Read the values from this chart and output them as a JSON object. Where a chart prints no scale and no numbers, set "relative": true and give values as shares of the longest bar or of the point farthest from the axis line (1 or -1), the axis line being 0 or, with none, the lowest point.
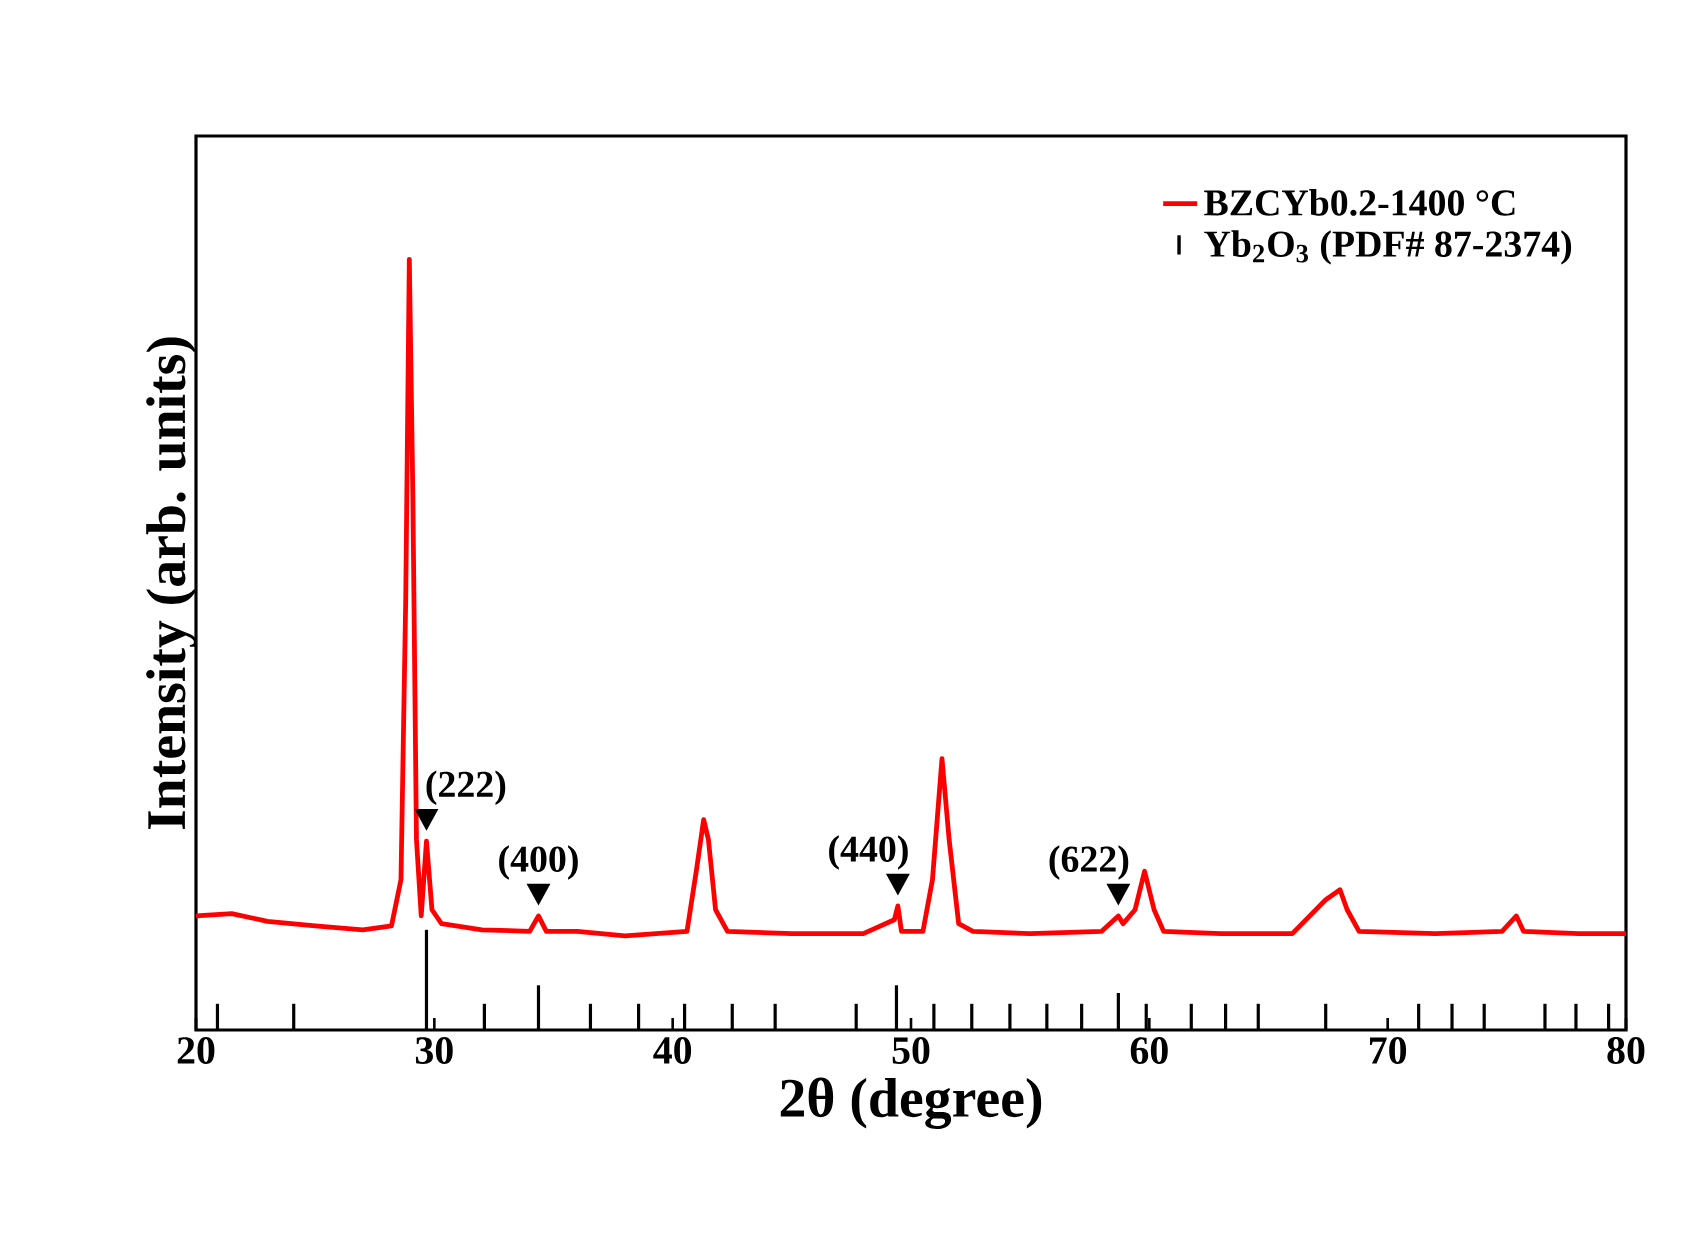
{
  "chart_data": {
    "type": "line",
    "xlabel": "2θ (degree)",
    "ylabel": "Intensity (arb. units)",
    "relative": true,
    "xlim": [
      20,
      80
    ],
    "xticks": [
      20,
      30,
      40,
      50,
      60,
      70,
      80
    ],
    "legend": "top right",
    "grid": false,
    "series": [
      {
        "name": "BZCYb0.2-1400 °C",
        "color": "#ff0000",
        "x": [
          20,
          21.5,
          23,
          25,
          27,
          28.2,
          28.6,
          28.8,
          28.95,
          29.1,
          29.25,
          29.45,
          29.67,
          29.9,
          30.3,
          32,
          34,
          34.37,
          34.7,
          36,
          38,
          40.6,
          41.0,
          41.3,
          41.5,
          41.8,
          42.3,
          45,
          48,
          49.3,
          49.45,
          49.6,
          50.5,
          50.9,
          51.3,
          51.6,
          52,
          52.6,
          55,
          58,
          58.7,
          58.9,
          59.4,
          59.8,
          60.2,
          60.6,
          63,
          66,
          67.4,
          68.0,
          68.3,
          68.8,
          72,
          74.8,
          75.4,
          75.7,
          78,
          80
        ],
        "values": [
          0.148,
          0.151,
          0.141,
          0.135,
          0.13,
          0.135,
          0.195,
          0.56,
          1.0,
          0.69,
          0.247,
          0.148,
          0.245,
          0.156,
          0.138,
          0.13,
          0.128,
          0.148,
          0.128,
          0.128,
          0.122,
          0.128,
          0.208,
          0.273,
          0.247,
          0.156,
          0.128,
          0.125,
          0.125,
          0.143,
          0.161,
          0.128,
          0.128,
          0.195,
          0.352,
          0.247,
          0.138,
          0.128,
          0.125,
          0.128,
          0.148,
          0.138,
          0.156,
          0.206,
          0.156,
          0.128,
          0.125,
          0.125,
          0.169,
          0.182,
          0.156,
          0.128,
          0.125,
          0.128,
          0.148,
          0.128,
          0.125,
          0.125
        ]
      },
      {
        "name": "Yb$_{2}$O$_{3}$ (PDF# 87-2374)",
        "type": "bar",
        "color": "#000000",
        "x": [
          20.9,
          24.1,
          29.67,
          32.1,
          34.37,
          36.55,
          38.57,
          40.5,
          42.5,
          44.3,
          47.7,
          49.39,
          50.96,
          52.55,
          54.15,
          55.7,
          57.16,
          58.7,
          59.87,
          61.76,
          63.2,
          64.57,
          67.4,
          71.3,
          72.7,
          74.05,
          76.6,
          77.9,
          79.27
        ],
        "values": [
          0.034,
          0.034,
          0.13,
          0.034,
          0.058,
          0.034,
          0.034,
          0.034,
          0.034,
          0.034,
          0.034,
          0.058,
          0.034,
          0.034,
          0.034,
          0.034,
          0.034,
          0.048,
          0.034,
          0.034,
          0.034,
          0.034,
          0.034,
          0.034,
          0.034,
          0.034,
          0.034,
          0.034,
          0.034
        ]
      }
    ],
    "annotations": [
      {
        "text": "(222)",
        "x": 29.67,
        "y": 0.245
      },
      {
        "text": "(400)",
        "x": 34.37,
        "y": 0.148
      },
      {
        "text": "(440)",
        "x": 49.45,
        "y": 0.161
      },
      {
        "text": "(622)",
        "x": 58.7,
        "y": 0.148
      }
    ]
  }
}
